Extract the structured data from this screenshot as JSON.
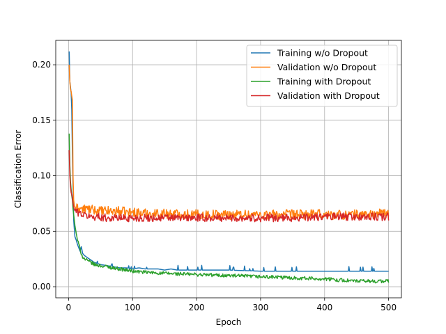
{
  "chart_data": {
    "type": "line",
    "title": "",
    "xlabel": "Epoch",
    "ylabel": "Classification Error",
    "xlim": [
      -20,
      520
    ],
    "ylim": [
      -0.01,
      0.222
    ],
    "xticks": [
      0,
      100,
      200,
      300,
      400,
      500
    ],
    "yticks": [
      0.0,
      0.05,
      0.1,
      0.15,
      0.2
    ],
    "xtick_labels": [
      "0",
      "100",
      "200",
      "300",
      "400",
      "500"
    ],
    "ytick_labels": [
      "0.00",
      "0.05",
      "0.10",
      "0.15",
      "0.20"
    ],
    "grid": true,
    "legend_position": "top-right",
    "series": [
      {
        "name": "Training w/o Dropout",
        "color": "#1f77b4",
        "x": [
          1,
          2,
          3,
          4,
          5,
          6,
          7,
          8,
          9,
          10,
          12,
          14,
          16,
          18,
          20,
          22,
          25,
          30,
          35,
          40,
          50,
          60,
          70,
          80,
          90,
          100,
          110,
          120,
          130,
          140,
          150,
          160,
          170,
          180,
          200,
          250,
          300,
          350,
          400,
          450,
          500
        ],
        "y": [
          0.212,
          0.185,
          0.18,
          0.175,
          0.16,
          0.12,
          0.09,
          0.06,
          0.052,
          0.045,
          0.042,
          0.038,
          0.035,
          0.032,
          0.036,
          0.03,
          0.028,
          0.026,
          0.024,
          0.022,
          0.02,
          0.019,
          0.018,
          0.017,
          0.017,
          0.016,
          0.017,
          0.016,
          0.016,
          0.016,
          0.015,
          0.016,
          0.015,
          0.015,
          0.015,
          0.015,
          0.014,
          0.014,
          0.014,
          0.014,
          0.014
        ],
        "jitter_amp": 0.0,
        "jitter_start": 0
      },
      {
        "name": "Validation w/o Dropout",
        "color": "#ff7f0e",
        "x": [
          1,
          2,
          3,
          4,
          5,
          6,
          7,
          8,
          9,
          10,
          12,
          14,
          16,
          18,
          20,
          22,
          25,
          30,
          35,
          40,
          50,
          60,
          70,
          80,
          90,
          100,
          120,
          150,
          200,
          250,
          300,
          350,
          400,
          450,
          500
        ],
        "y": [
          0.2,
          0.185,
          0.178,
          0.176,
          0.172,
          0.168,
          0.1,
          0.078,
          0.074,
          0.072,
          0.071,
          0.07,
          0.072,
          0.07,
          0.071,
          0.069,
          0.07,
          0.07,
          0.069,
          0.069,
          0.068,
          0.068,
          0.068,
          0.068,
          0.067,
          0.067,
          0.066,
          0.066,
          0.065,
          0.065,
          0.065,
          0.065,
          0.065,
          0.065,
          0.066
        ],
        "jitter_amp": 0.0045,
        "jitter_start": 12
      },
      {
        "name": "Training with Dropout",
        "color": "#2ca02c",
        "x": [
          1,
          2,
          3,
          4,
          5,
          6,
          7,
          8,
          9,
          10,
          12,
          14,
          16,
          18,
          20,
          22,
          25,
          30,
          35,
          40,
          50,
          60,
          70,
          80,
          90,
          100,
          120,
          150,
          200,
          250,
          300,
          350,
          400,
          450,
          500
        ],
        "y": [
          0.138,
          0.11,
          0.095,
          0.088,
          0.082,
          0.078,
          0.07,
          0.065,
          0.06,
          0.055,
          0.048,
          0.042,
          0.038,
          0.034,
          0.03,
          0.027,
          0.025,
          0.023,
          0.022,
          0.02,
          0.019,
          0.018,
          0.017,
          0.016,
          0.015,
          0.014,
          0.013,
          0.012,
          0.011,
          0.01,
          0.009,
          0.008,
          0.007,
          0.005,
          0.005
        ],
        "jitter_amp": 0.0016,
        "jitter_start": 14
      },
      {
        "name": "Validation with Dropout",
        "color": "#d62728",
        "x": [
          1,
          2,
          3,
          4,
          5,
          6,
          7,
          8,
          9,
          10,
          12,
          14,
          16,
          18,
          20,
          22,
          25,
          30,
          35,
          40,
          50,
          60,
          70,
          80,
          90,
          100,
          150,
          200,
          250,
          300,
          350,
          400,
          450,
          500
        ],
        "y": [
          0.123,
          0.1,
          0.09,
          0.085,
          0.083,
          0.08,
          0.075,
          0.072,
          0.07,
          0.069,
          0.068,
          0.067,
          0.067,
          0.066,
          0.066,
          0.065,
          0.064,
          0.064,
          0.063,
          0.063,
          0.063,
          0.062,
          0.062,
          0.062,
          0.062,
          0.062,
          0.062,
          0.062,
          0.062,
          0.062,
          0.062,
          0.063,
          0.063,
          0.063
        ],
        "jitter_amp": 0.0035,
        "jitter_start": 10
      }
    ]
  }
}
